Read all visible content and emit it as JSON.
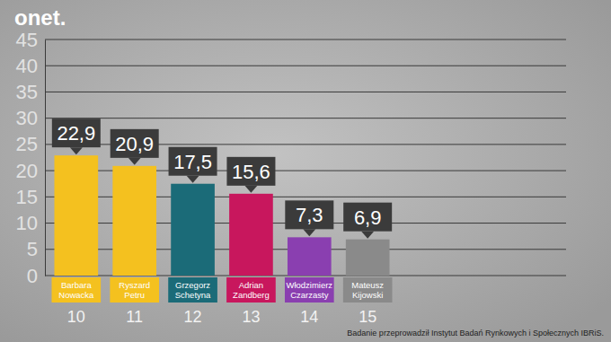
{
  "chart_data": {
    "type": "bar",
    "logo": "onet.",
    "categories": [
      "Barbara Nowacka",
      "Ryszard Petru",
      "Grzegorz Schetyna",
      "Adrian Zandberg",
      "Włodzimierz Czarzasty",
      "Mateusz Kijowski"
    ],
    "values": [
      22.9,
      20.9,
      17.5,
      15.6,
      7.3,
      6.9
    ],
    "value_labels": [
      "22,9",
      "20,9",
      "17,5",
      "15,6",
      "7,3",
      "6,9"
    ],
    "ranks": [
      10,
      11,
      12,
      13,
      14,
      15
    ],
    "colors": [
      "#f4c11f",
      "#f4c11f",
      "#1b6b78",
      "#c8175d",
      "#8a3fb0",
      "#8a8a8a"
    ],
    "ylim": [
      0,
      45
    ],
    "yticks": [
      0,
      5,
      10,
      15,
      20,
      25,
      30,
      35,
      40,
      45
    ],
    "grid": true,
    "data_labels": true,
    "source": "Badanie przeprowadził Instytut Badań Rynkowych i Społecznych IBRiS."
  }
}
